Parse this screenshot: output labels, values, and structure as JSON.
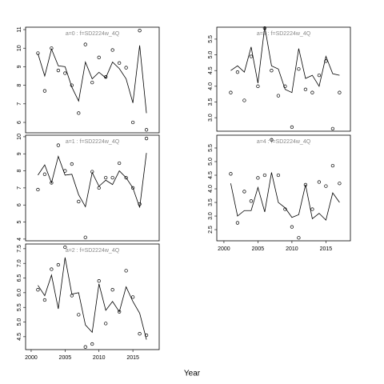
{
  "xlabel": "Year",
  "chart_data": [
    {
      "type": "line",
      "title": "a=0  :  f=SD2224w_4Q",
      "x": [
        2001,
        2002,
        2003,
        2004,
        2005,
        2006,
        2007,
        2008,
        2009,
        2010,
        2011,
        2012,
        2013,
        2014,
        2015,
        2016,
        2017
      ],
      "xlim": [
        1999.18,
        2018.88
      ],
      "ylim": [
        5.44,
        11.13
      ],
      "yticks": [
        6,
        7,
        8,
        9,
        10,
        11
      ],
      "series": [
        {
          "mode": "line",
          "color": "#000000",
          "values": [
            9.7,
            8.5,
            9.95,
            9.05,
            9.0,
            7.9,
            7.15,
            9.25,
            8.35,
            8.7,
            8.4,
            9.25,
            8.9,
            8.35,
            7.05,
            10.15,
            6.5
          ]
        },
        {
          "mode": "markers",
          "color": "#000000",
          "values": [
            9.73,
            7.7,
            10.0,
            8.8,
            8.65,
            8.0,
            6.5,
            10.2,
            8.15,
            9.5,
            8.45,
            9.9,
            9.2,
            8.95,
            6.0,
            10.95,
            5.6
          ]
        }
      ]
    },
    {
      "type": "line",
      "title": "a=1  :  f=SD2224w_4Q",
      "x": [
        2001,
        2002,
        2003,
        2004,
        2005,
        2006,
        2007,
        2008,
        2009,
        2010,
        2011,
        2012,
        2013,
        2014,
        2015,
        2016,
        2017
      ],
      "xlim": [
        1999.18,
        2018.88
      ],
      "ylim": [
        3.9,
        10.09
      ],
      "yticks": [
        4,
        5,
        6,
        7,
        8,
        9,
        10
      ],
      "series": [
        {
          "mode": "line",
          "color": "#000000",
          "values": [
            7.75,
            8.35,
            7.3,
            8.85,
            7.75,
            7.8,
            6.6,
            5.9,
            7.9,
            7.1,
            7.45,
            7.2,
            8.0,
            7.6,
            7.0,
            5.85,
            9.05
          ]
        },
        {
          "mode": "markers",
          "color": "#000000",
          "values": [
            6.9,
            7.8,
            7.3,
            9.5,
            8.0,
            8.4,
            6.2,
            4.1,
            7.95,
            7.0,
            7.6,
            7.6,
            8.45,
            7.6,
            7.0,
            6.05,
            9.9
          ]
        }
      ]
    },
    {
      "type": "line",
      "title": "a=2  :  f=SD2224w_4Q",
      "x": [
        2001,
        2002,
        2003,
        2004,
        2005,
        2006,
        2007,
        2008,
        2009,
        2010,
        2011,
        2012,
        2013,
        2014,
        2015,
        2016,
        2017
      ],
      "xlim": [
        1999.18,
        2018.88
      ],
      "xticks": [
        2000,
        2005,
        2010,
        2015
      ],
      "ylim": [
        4.06,
        7.66
      ],
      "yticks": [
        4.5,
        {
          "value": 5,
          "label": "5.0"
        },
        5.5,
        {
          "value": 6,
          "label": "6.0"
        },
        6.5,
        {
          "value": 7,
          "label": "7.0"
        },
        7.5
      ],
      "series": [
        {
          "mode": "line",
          "color": "#000000",
          "values": [
            6.25,
            5.9,
            6.6,
            5.45,
            7.2,
            5.95,
            6.0,
            4.9,
            4.65,
            6.3,
            5.4,
            5.7,
            5.35,
            6.2,
            5.7,
            5.3,
            4.4
          ]
        },
        {
          "mode": "markers",
          "color": "#000000",
          "values": [
            6.1,
            5.75,
            6.8,
            6.95,
            7.55,
            5.9,
            5.25,
            4.15,
            4.25,
            6.4,
            4.95,
            6.1,
            5.35,
            6.75,
            5.85,
            4.6,
            4.55
          ]
        }
      ]
    },
    {
      "type": "line",
      "title": "a=3  :  f=SD2224w_4Q",
      "x": [
        2001,
        2002,
        2003,
        2004,
        2005,
        2006,
        2007,
        2008,
        2009,
        2010,
        2011,
        2012,
        2013,
        2014,
        2015,
        2016,
        2017
      ],
      "xlim": [
        1998.95,
        2018.6
      ],
      "ylim": [
        2.57,
        5.88
      ],
      "yticks": [
        {
          "value": 3,
          "label": "3.0"
        },
        3.5,
        {
          "value": 4,
          "label": "4.0"
        },
        4.5,
        {
          "value": 5,
          "label": "5.0"
        },
        5.5
      ],
      "series": [
        {
          "mode": "line",
          "color": "#000000",
          "values": [
            4.5,
            4.65,
            4.45,
            5.25,
            4.1,
            5.9,
            4.65,
            4.55,
            3.9,
            3.8,
            5.2,
            4.25,
            4.35,
            4.0,
            4.95,
            4.4,
            4.35
          ]
        },
        {
          "mode": "markers",
          "color": "#000000",
          "values": [
            3.8,
            4.45,
            3.55,
            4.95,
            4.0,
            5.85,
            4.5,
            3.7,
            4.0,
            2.7,
            4.55,
            3.9,
            3.8,
            4.35,
            4.8,
            2.65,
            3.8
          ]
        }
      ]
    },
    {
      "type": "line",
      "title": "a=4  :  f=SD2224w_4Q",
      "x": [
        2001,
        2002,
        2003,
        2004,
        2005,
        2006,
        2007,
        2008,
        2009,
        2010,
        2011,
        2012,
        2013,
        2014,
        2015,
        2016,
        2017
      ],
      "xlim": [
        1998.95,
        2018.6
      ],
      "xticks": [
        2000,
        2005,
        2010,
        2015
      ],
      "ylim": [
        2.09,
        5.97
      ],
      "yticks": [
        2.5,
        {
          "value": 3,
          "label": "3.0"
        },
        3.5,
        {
          "value": 4,
          "label": "4.0"
        },
        4.5,
        {
          "value": 5,
          "label": "5.0"
        },
        5.5
      ],
      "series": [
        {
          "mode": "line",
          "color": "#000000",
          "values": [
            4.2,
            3.0,
            3.2,
            3.2,
            4.05,
            3.15,
            4.6,
            3.5,
            3.3,
            2.95,
            3.05,
            4.15,
            2.9,
            3.1,
            2.85,
            3.85,
            3.5
          ]
        },
        {
          "mode": "markers",
          "color": "#000000",
          "values": [
            4.55,
            2.75,
            3.9,
            3.55,
            4.4,
            4.5,
            5.8,
            4.5,
            3.25,
            2.6,
            2.2,
            4.15,
            3.25,
            4.25,
            4.1,
            4.85,
            4.2
          ]
        }
      ]
    }
  ]
}
